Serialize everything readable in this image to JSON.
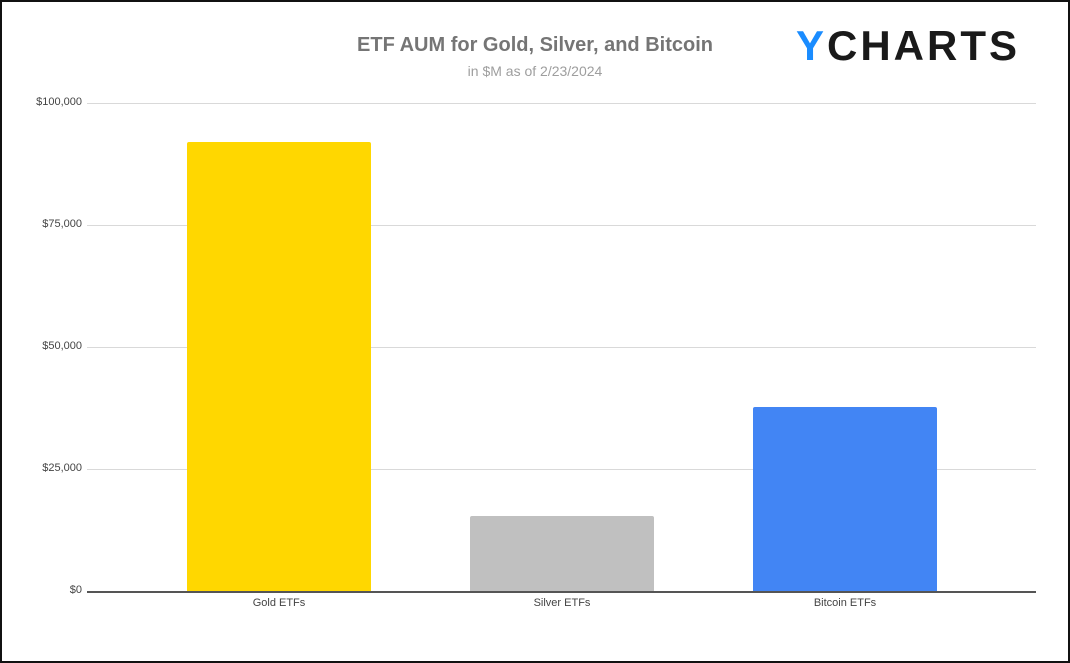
{
  "header": {
    "title": "ETF AUM for Gold, Silver, and Bitcoin",
    "subtitle": "in $M as of 2/23/2024",
    "logo_prefix": "Y",
    "logo_rest": "CHARTS"
  },
  "y_axis": {
    "ticks": [
      "$0",
      "$25,000",
      "$50,000",
      "$75,000",
      "$100,000"
    ]
  },
  "x_axis": {
    "labels": [
      "Gold ETFs",
      "Silver ETFs",
      "Bitcoin ETFs"
    ]
  },
  "colors": {
    "gold": "#FFD700",
    "silver": "#C0C0C0",
    "bitcoin": "#4285F4",
    "logo_accent": "#1A8CFF"
  },
  "chart_data": {
    "type": "bar",
    "title": "ETF AUM for Gold, Silver, and Bitcoin",
    "subtitle": "in $M as of 2/23/2024",
    "categories": [
      "Gold ETFs",
      "Silver ETFs",
      "Bitcoin ETFs"
    ],
    "values": [
      92000,
      15300,
      37800
    ],
    "bar_colors": [
      "#FFD700",
      "#C0C0C0",
      "#4285F4"
    ],
    "xlabel": "",
    "ylabel": "",
    "ylim": [
      0,
      100000
    ],
    "yticks": [
      0,
      25000,
      50000,
      75000,
      100000
    ],
    "ytick_labels": [
      "$0",
      "$25,000",
      "$50,000",
      "$75,000",
      "$100,000"
    ],
    "grid": true,
    "legend": null,
    "units": "$M"
  }
}
